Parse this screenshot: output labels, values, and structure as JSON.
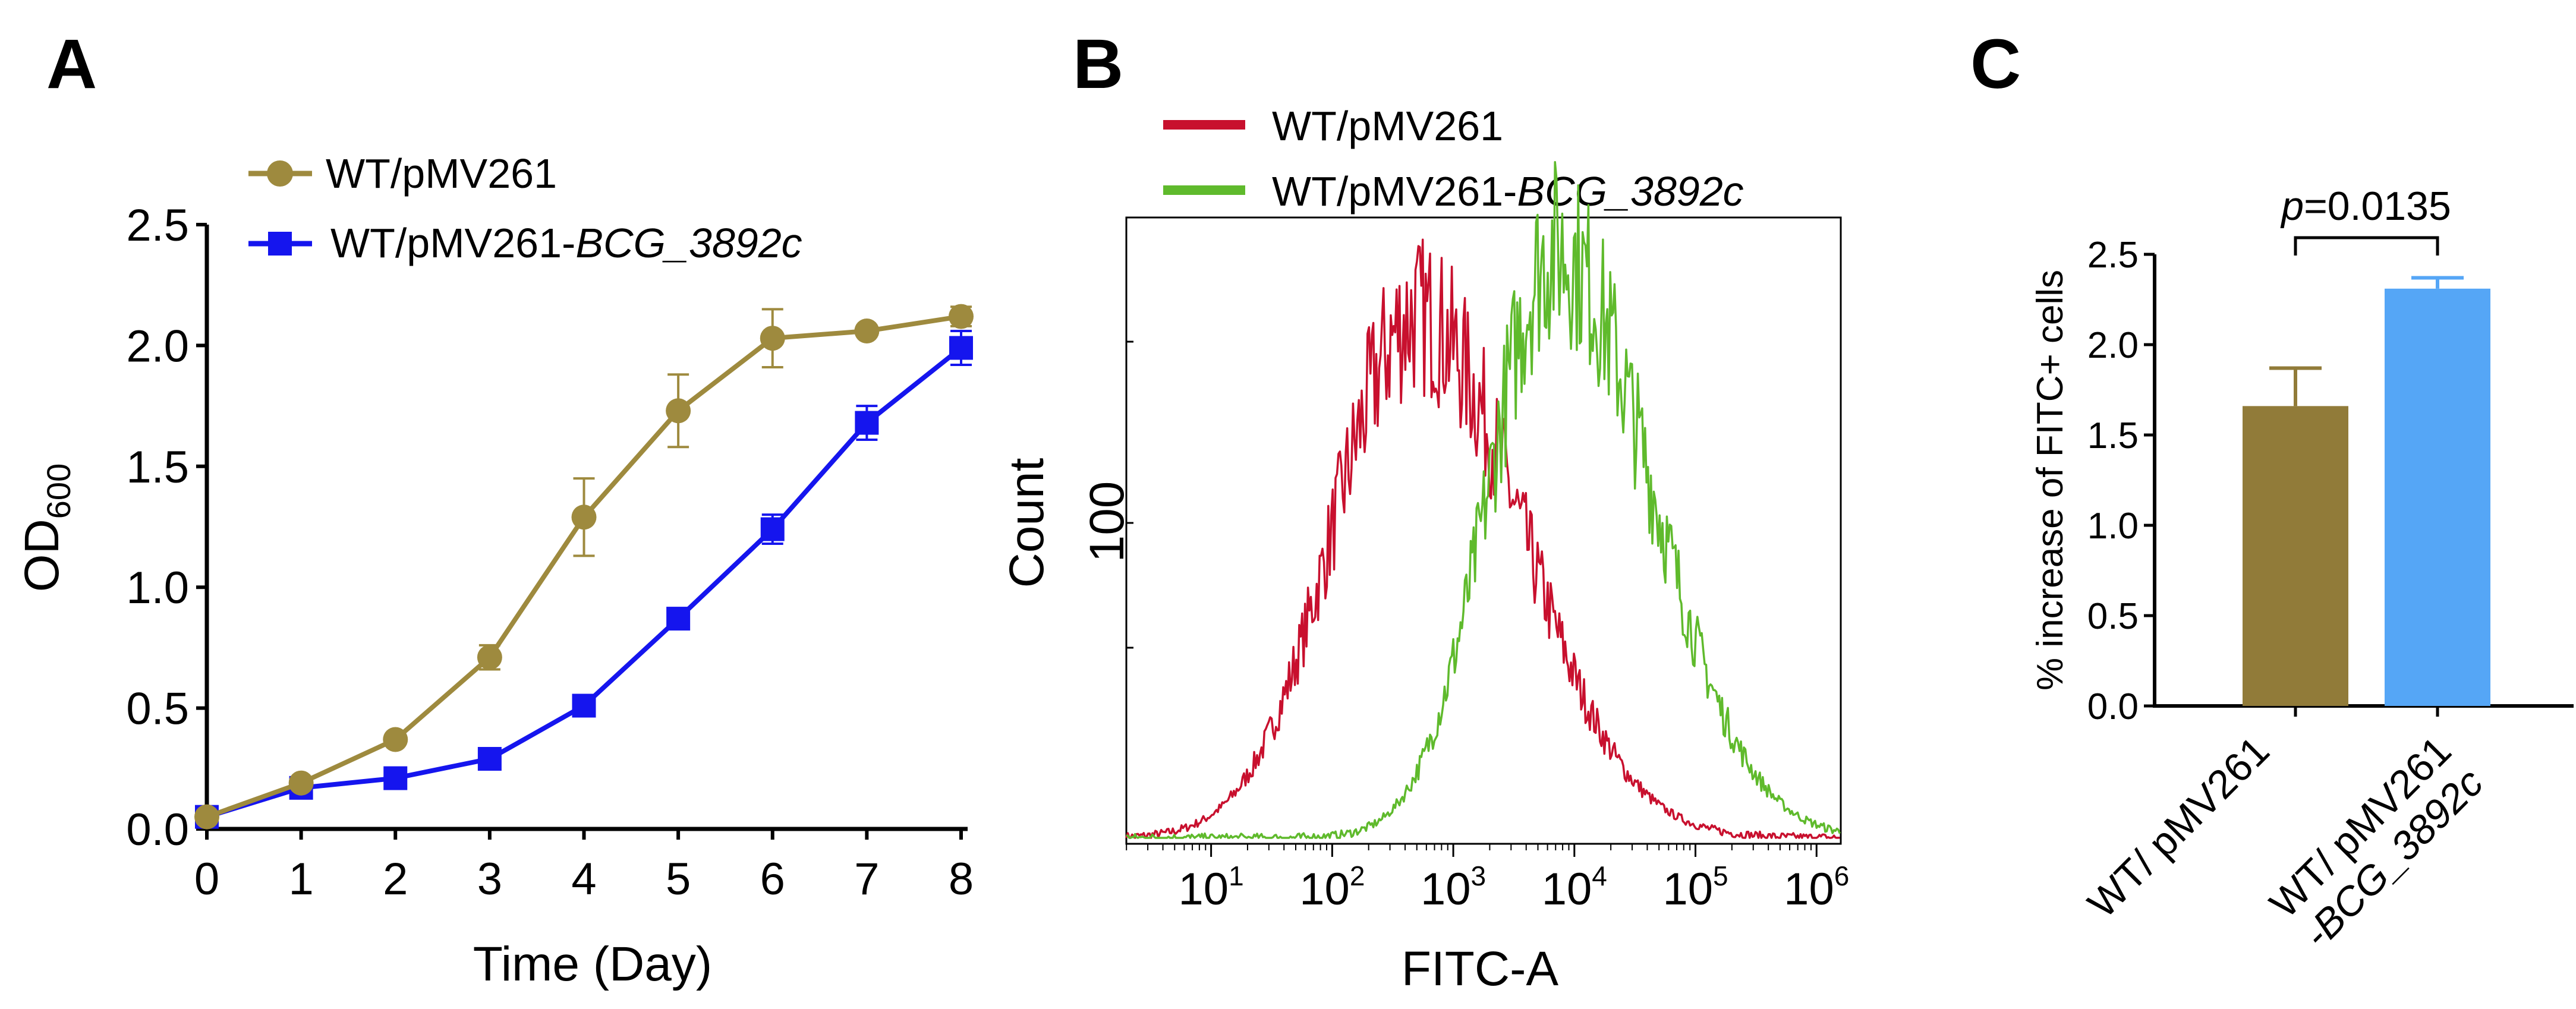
{
  "chart_data": [
    {
      "panel": "A",
      "type": "line",
      "xlabel": "Time (Day)",
      "ylabel": "OD",
      "ylabel_sub": "600",
      "xlim": [
        0,
        8
      ],
      "ylim": [
        0,
        2.5
      ],
      "x": [
        0,
        1,
        2,
        3,
        4,
        5,
        6,
        7,
        8
      ],
      "x_ticks": [
        "0",
        "1",
        "2",
        "3",
        "4",
        "5",
        "6",
        "7",
        "8"
      ],
      "y_ticks": [
        "0.0",
        "0.5",
        "1.0",
        "1.5",
        "2.0",
        "2.5"
      ],
      "series": [
        {
          "name": "WT/pMV261",
          "color": "#9e8a3e",
          "marker": "circle",
          "values": [
            0.05,
            0.19,
            0.37,
            0.71,
            1.29,
            1.73,
            2.03,
            2.06,
            2.12
          ],
          "errors": [
            0.01,
            0.02,
            0.02,
            0.05,
            0.16,
            0.15,
            0.12,
            0.02,
            0.04
          ]
        },
        {
          "name": "WT/pMV261-",
          "name_italic": "BCG_3892c",
          "color": "#1515ee",
          "marker": "square",
          "values": [
            0.05,
            0.17,
            0.21,
            0.29,
            0.51,
            0.87,
            1.24,
            1.68,
            1.99
          ],
          "errors": [
            0.01,
            0.02,
            0.02,
            0.02,
            0.03,
            0.03,
            0.06,
            0.07,
            0.07
          ]
        }
      ]
    },
    {
      "panel": "B",
      "type": "area",
      "subtype": "flow-cytometry histogram",
      "xlabel": "FITC-A",
      "ylabel": "Count",
      "y_tick_label": "100",
      "xscale": "log",
      "xlim_log10": [
        0.3,
        6.2
      ],
      "x_tick_bases": [
        "10",
        "10",
        "10",
        "10",
        "10",
        "10"
      ],
      "x_tick_exps": [
        "1",
        "2",
        "3",
        "4",
        "5",
        "6"
      ],
      "series": [
        {
          "name": "WT/pMV261",
          "color": "#c8102e",
          "peak_log10": 2.7,
          "peak_count": 240
        },
        {
          "name": "WT/pMV261-",
          "name_italic": "BCG_3892c",
          "color": "#5fba2c",
          "peak_log10": 3.85,
          "peak_count": 270
        }
      ]
    },
    {
      "panel": "C",
      "type": "bar",
      "ylabel": "% increase of FITC+ cells",
      "ylim": [
        0,
        2.5
      ],
      "y_ticks": [
        "0.0",
        "0.5",
        "1.0",
        "1.5",
        "2.0",
        "2.5"
      ],
      "categories": [
        "WT/ pMV261",
        "WT/ pMV261"
      ],
      "category_line2_italic": [
        "",
        "-BCG_3892c"
      ],
      "values": [
        1.66,
        2.31
      ],
      "errors": [
        0.21,
        0.06
      ],
      "colors": [
        "#917b39",
        "#55a6f6"
      ],
      "annotation": "=0.0135",
      "annotation_italic": "p"
    }
  ],
  "panel_labels": {
    "a": "A",
    "b": "B",
    "c": "C"
  }
}
